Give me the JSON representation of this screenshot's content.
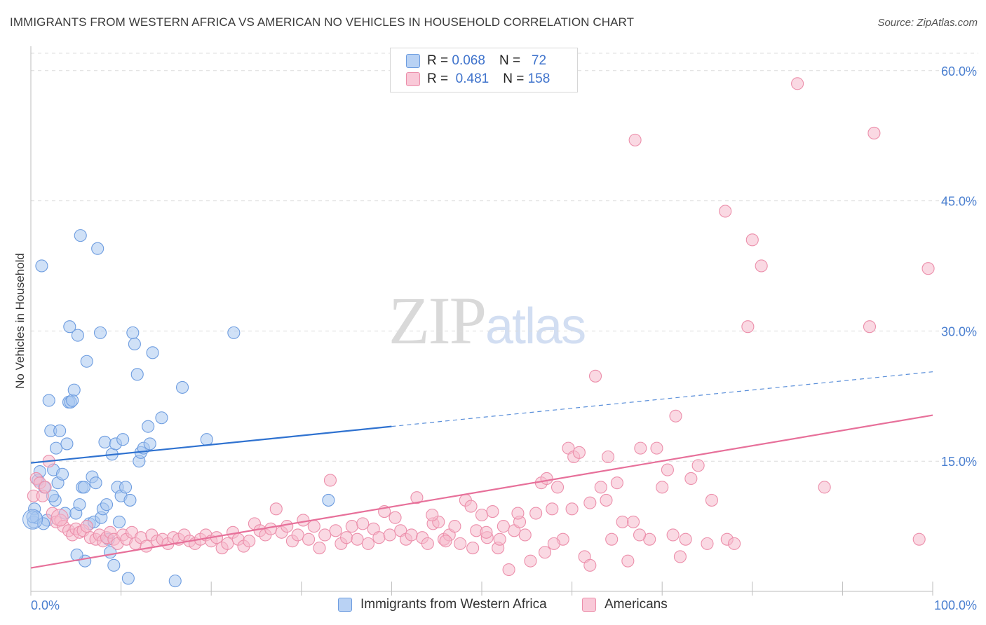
{
  "title": "IMMIGRANTS FROM WESTERN AFRICA VS AMERICAN NO VEHICLES IN HOUSEHOLD CORRELATION CHART",
  "source": "Source: ZipAtlas.com",
  "watermark": {
    "zip": "ZIP",
    "atlas": "atlas"
  },
  "legend": {
    "rows": [
      {
        "r_label": "R =",
        "r_value": "0.068",
        "n_label": "N =",
        "n_value": "72"
      },
      {
        "r_label": "R =",
        "r_value": "0.481",
        "n_label": "N =",
        "n_value": "158"
      }
    ]
  },
  "bottom_legend": [
    "Immigrants from Western Africa",
    "Americans"
  ],
  "colors": {
    "blue_fill": "#a9c8f0",
    "blue_stroke": "#6e9de0",
    "blue_line": "#2f72d0",
    "pink_fill": "#f6b9cc",
    "pink_stroke": "#ec8fab",
    "pink_line": "#e7709a",
    "grid": "#dcdcdc",
    "tick_text": "#4a7fd0"
  },
  "chart_data": {
    "type": "scatter",
    "title": "IMMIGRANTS FROM WESTERN AFRICA VS AMERICAN NO VEHICLES IN HOUSEHOLD CORRELATION CHART",
    "xlabel": "",
    "ylabel": "No Vehicles in Household",
    "xlim": [
      0,
      100
    ],
    "ylim": [
      0,
      62
    ],
    "x_ticks": [
      {
        "v": 0,
        "label": "0.0%"
      },
      {
        "v": 100,
        "label": "100.0%"
      }
    ],
    "y_ticks": [
      {
        "v": 15,
        "label": "15.0%"
      },
      {
        "v": 30,
        "label": "30.0%"
      },
      {
        "v": 45,
        "label": "45.0%"
      },
      {
        "v": 60,
        "label": "60.0%"
      }
    ],
    "grid": true,
    "legend_position": "top-center",
    "series": [
      {
        "name": "Immigrants from Western Africa",
        "color": "blue",
        "trend": {
          "x": [
            0,
            100
          ],
          "y": [
            14.8,
            25.3
          ],
          "solid_until": 40
        },
        "points": [
          [
            0.3,
            8.0
          ],
          [
            0.4,
            9.5
          ],
          [
            0.6,
            8.5
          ],
          [
            0.8,
            12.8
          ],
          [
            1.0,
            13.8
          ],
          [
            1.2,
            37.5
          ],
          [
            1.5,
            12.0
          ],
          [
            1.8,
            8.2
          ],
          [
            2.0,
            22.0
          ],
          [
            2.2,
            18.5
          ],
          [
            2.5,
            14.0
          ],
          [
            2.7,
            10.5
          ],
          [
            2.8,
            16.5
          ],
          [
            3.0,
            12.5
          ],
          [
            3.2,
            18.5
          ],
          [
            3.5,
            13.5
          ],
          [
            3.8,
            9.0
          ],
          [
            4.0,
            17.0
          ],
          [
            4.2,
            21.8
          ],
          [
            4.4,
            21.8
          ],
          [
            4.6,
            22.0
          ],
          [
            4.8,
            23.2
          ],
          [
            5.0,
            9.0
          ],
          [
            5.2,
            29.5
          ],
          [
            5.4,
            10.0
          ],
          [
            5.5,
            41.0
          ],
          [
            5.7,
            12.0
          ],
          [
            5.9,
            12.0
          ],
          [
            6.0,
            3.5
          ],
          [
            6.2,
            26.5
          ],
          [
            6.5,
            7.8
          ],
          [
            6.8,
            13.2
          ],
          [
            7.0,
            8.0
          ],
          [
            7.2,
            12.5
          ],
          [
            7.4,
            39.5
          ],
          [
            7.7,
            29.8
          ],
          [
            7.8,
            8.5
          ],
          [
            8.0,
            9.5
          ],
          [
            8.2,
            17.2
          ],
          [
            8.4,
            10.0
          ],
          [
            8.6,
            6.0
          ],
          [
            8.8,
            4.5
          ],
          [
            9.0,
            15.8
          ],
          [
            9.2,
            3.0
          ],
          [
            9.4,
            17.0
          ],
          [
            9.6,
            12.0
          ],
          [
            9.8,
            8.0
          ],
          [
            10.0,
            11.0
          ],
          [
            10.2,
            17.5
          ],
          [
            10.5,
            12.0
          ],
          [
            10.8,
            1.5
          ],
          [
            11.0,
            10.5
          ],
          [
            11.3,
            29.8
          ],
          [
            11.5,
            28.5
          ],
          [
            11.8,
            25.0
          ],
          [
            12.0,
            15.0
          ],
          [
            12.2,
            16.0
          ],
          [
            12.5,
            16.5
          ],
          [
            13.0,
            19.0
          ],
          [
            13.2,
            17.0
          ],
          [
            13.5,
            27.5
          ],
          [
            14.5,
            20.0
          ],
          [
            16.0,
            1.2
          ],
          [
            16.8,
            23.5
          ],
          [
            19.5,
            17.5
          ],
          [
            22.5,
            29.8
          ],
          [
            33.0,
            10.5
          ],
          [
            4.3,
            30.5
          ],
          [
            2.4,
            11.0
          ],
          [
            5.1,
            4.2
          ],
          [
            0.2,
            8.6
          ],
          [
            1.4,
            7.8
          ]
        ]
      },
      {
        "name": "Americans",
        "color": "pink",
        "trend": {
          "x": [
            0,
            100
          ],
          "y": [
            2.7,
            20.3
          ]
        },
        "points": [
          [
            0.3,
            11.0
          ],
          [
            0.6,
            13.0
          ],
          [
            1.0,
            12.5
          ],
          [
            1.3,
            11.0
          ],
          [
            1.6,
            12.0
          ],
          [
            2.0,
            15.0
          ],
          [
            2.4,
            9.0
          ],
          [
            2.8,
            8.0
          ],
          [
            3.3,
            8.2
          ],
          [
            3.6,
            7.5
          ],
          [
            4.2,
            7.0
          ],
          [
            4.6,
            6.5
          ],
          [
            5.0,
            7.2
          ],
          [
            5.4,
            6.8
          ],
          [
            5.8,
            7.0
          ],
          [
            6.2,
            7.5
          ],
          [
            6.6,
            6.2
          ],
          [
            7.2,
            6.0
          ],
          [
            7.6,
            6.5
          ],
          [
            8.0,
            5.8
          ],
          [
            8.4,
            6.2
          ],
          [
            8.8,
            6.8
          ],
          [
            9.2,
            6.0
          ],
          [
            9.6,
            5.5
          ],
          [
            10.2,
            6.5
          ],
          [
            10.6,
            6.0
          ],
          [
            11.2,
            6.8
          ],
          [
            11.6,
            5.5
          ],
          [
            12.2,
            6.2
          ],
          [
            12.8,
            5.2
          ],
          [
            13.4,
            6.5
          ],
          [
            14.0,
            5.8
          ],
          [
            14.6,
            6.0
          ],
          [
            15.2,
            5.5
          ],
          [
            15.8,
            6.2
          ],
          [
            16.4,
            6.0
          ],
          [
            17.0,
            6.5
          ],
          [
            17.6,
            5.8
          ],
          [
            18.2,
            5.5
          ],
          [
            18.8,
            6.0
          ],
          [
            19.4,
            6.5
          ],
          [
            20.0,
            5.8
          ],
          [
            20.6,
            6.2
          ],
          [
            21.2,
            5.0
          ],
          [
            21.8,
            5.5
          ],
          [
            22.4,
            6.8
          ],
          [
            23.0,
            6.0
          ],
          [
            23.6,
            5.2
          ],
          [
            24.2,
            5.8
          ],
          [
            24.8,
            7.8
          ],
          [
            25.4,
            7.0
          ],
          [
            26.0,
            6.5
          ],
          [
            26.6,
            7.2
          ],
          [
            27.2,
            9.5
          ],
          [
            27.8,
            6.8
          ],
          [
            28.4,
            7.5
          ],
          [
            29.0,
            5.8
          ],
          [
            29.6,
            6.5
          ],
          [
            30.2,
            8.2
          ],
          [
            30.8,
            6.0
          ],
          [
            31.4,
            7.5
          ],
          [
            32.0,
            5.0
          ],
          [
            32.6,
            6.5
          ],
          [
            33.2,
            12.8
          ],
          [
            33.8,
            7.0
          ],
          [
            34.4,
            5.5
          ],
          [
            35.0,
            6.2
          ],
          [
            35.6,
            7.5
          ],
          [
            36.2,
            6.0
          ],
          [
            36.8,
            7.8
          ],
          [
            37.4,
            5.5
          ],
          [
            38.0,
            7.2
          ],
          [
            38.6,
            6.2
          ],
          [
            39.2,
            9.2
          ],
          [
            39.8,
            6.5
          ],
          [
            40.4,
            8.5
          ],
          [
            41.0,
            7.0
          ],
          [
            41.6,
            6.0
          ],
          [
            42.2,
            6.5
          ],
          [
            42.8,
            10.8
          ],
          [
            43.4,
            6.2
          ],
          [
            44.0,
            5.5
          ],
          [
            44.6,
            7.8
          ],
          [
            45.2,
            8.0
          ],
          [
            45.8,
            6.0
          ],
          [
            46.4,
            6.5
          ],
          [
            47.0,
            7.5
          ],
          [
            47.6,
            5.5
          ],
          [
            48.2,
            10.5
          ],
          [
            48.8,
            9.8
          ],
          [
            49.4,
            7.0
          ],
          [
            50.0,
            8.8
          ],
          [
            50.6,
            6.2
          ],
          [
            51.2,
            9.2
          ],
          [
            51.8,
            5.0
          ],
          [
            52.4,
            7.5
          ],
          [
            53.0,
            2.5
          ],
          [
            53.6,
            7.0
          ],
          [
            54.2,
            8.0
          ],
          [
            54.8,
            6.5
          ],
          [
            55.4,
            3.5
          ],
          [
            56.0,
            9.0
          ],
          [
            56.6,
            12.5
          ],
          [
            57.2,
            13.0
          ],
          [
            57.8,
            9.5
          ],
          [
            58.4,
            12.0
          ],
          [
            59.0,
            6.0
          ],
          [
            59.6,
            16.5
          ],
          [
            60.2,
            15.5
          ],
          [
            60.8,
            16.0
          ],
          [
            61.4,
            4.0
          ],
          [
            62.0,
            10.2
          ],
          [
            62.6,
            24.8
          ],
          [
            63.2,
            12.0
          ],
          [
            63.8,
            10.5
          ],
          [
            64.4,
            6.0
          ],
          [
            65.0,
            12.5
          ],
          [
            65.6,
            8.0
          ],
          [
            66.2,
            3.5
          ],
          [
            67.0,
            52.0
          ],
          [
            67.6,
            16.5
          ],
          [
            68.6,
            6.0
          ],
          [
            69.4,
            16.5
          ],
          [
            70.0,
            12.0
          ],
          [
            70.6,
            14.0
          ],
          [
            71.2,
            6.5
          ],
          [
            72.0,
            4.0
          ],
          [
            72.6,
            6.0
          ],
          [
            73.2,
            13.0
          ],
          [
            74.0,
            14.5
          ],
          [
            75.0,
            5.5
          ],
          [
            75.5,
            10.5
          ],
          [
            77.0,
            43.8
          ],
          [
            77.2,
            6.0
          ],
          [
            78.0,
            5.5
          ],
          [
            79.5,
            30.5
          ],
          [
            80.0,
            40.5
          ],
          [
            81.0,
            37.5
          ],
          [
            85.0,
            58.5
          ],
          [
            88.0,
            12.0
          ],
          [
            93.0,
            30.5
          ],
          [
            93.5,
            52.8
          ],
          [
            98.5,
            6.0
          ],
          [
            99.5,
            37.2
          ],
          [
            58.0,
            5.5
          ],
          [
            54.0,
            9.0
          ],
          [
            66.8,
            8.0
          ],
          [
            67.5,
            6.5
          ],
          [
            71.5,
            20.2
          ],
          [
            60.0,
            9.5
          ],
          [
            52.0,
            6.0
          ],
          [
            49.0,
            5.0
          ],
          [
            46.0,
            5.8
          ],
          [
            44.5,
            8.8
          ],
          [
            50.5,
            6.8
          ],
          [
            57.0,
            4.5
          ],
          [
            62.0,
            3.0
          ],
          [
            64.0,
            15.5
          ]
        ]
      }
    ]
  }
}
